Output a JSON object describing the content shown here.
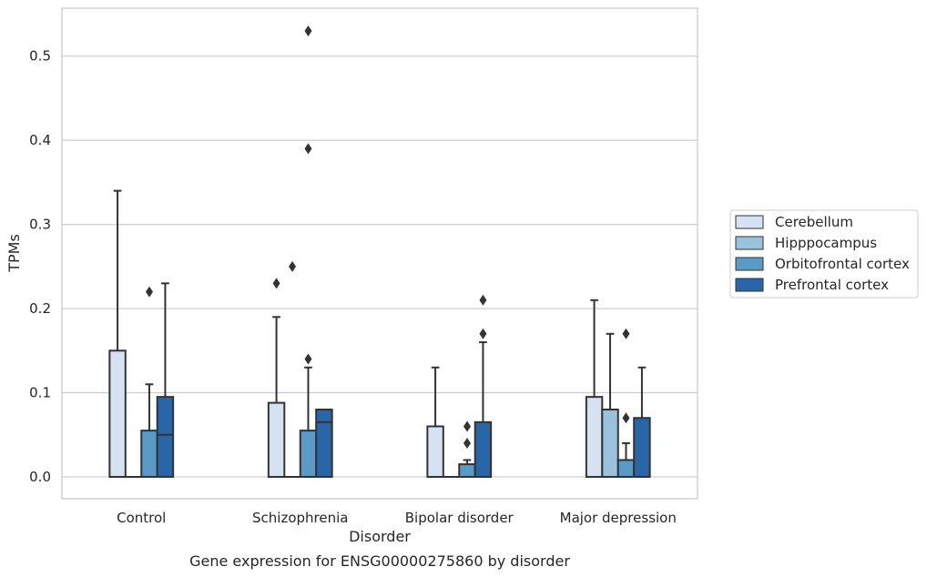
{
  "chart_data": {
    "type": "box",
    "title": "",
    "caption": "Gene expression for ENSG00000275860 by disorder",
    "xlabel": "Disorder",
    "ylabel": "TPMs",
    "ylim": [
      -0.026,
      0.557
    ],
    "yticks": [
      0.0,
      0.1,
      0.2,
      0.3,
      0.4,
      0.5
    ],
    "ytick_labels": [
      "0.0",
      "0.1",
      "0.2",
      "0.3",
      "0.4",
      "0.5"
    ],
    "grid": "horizontal",
    "legend_position": "right",
    "categories": [
      "Control",
      "Schizophrenia",
      "Bipolar disorder",
      "Major depression"
    ],
    "series": [
      {
        "name": "Cerebellum",
        "color": "#d4e2f1",
        "boxes": [
          {
            "whislo": 0.0,
            "q1": 0.0,
            "med": 0.0,
            "q3": 0.15,
            "whishi": 0.34,
            "fliers": []
          },
          {
            "whislo": 0.0,
            "q1": 0.0,
            "med": 0.0,
            "q3": 0.088,
            "whishi": 0.19,
            "fliers": [
              0.23
            ]
          },
          {
            "whislo": 0.0,
            "q1": 0.0,
            "med": 0.0,
            "q3": 0.06,
            "whishi": 0.13,
            "fliers": []
          },
          {
            "whislo": 0.0,
            "q1": 0.0,
            "med": 0.0,
            "q3": 0.095,
            "whishi": 0.21,
            "fliers": []
          }
        ]
      },
      {
        "name": "Hipppocampus",
        "color": "#9ac2dd",
        "boxes": [
          {
            "whislo": 0.0,
            "q1": 0.0,
            "med": 0.0,
            "q3": 0.0,
            "whishi": 0.0,
            "fliers": []
          },
          {
            "whislo": 0.0,
            "q1": 0.0,
            "med": 0.0,
            "q3": 0.0,
            "whishi": 0.0,
            "fliers": [
              0.25
            ]
          },
          {
            "whislo": 0.0,
            "q1": 0.0,
            "med": 0.0,
            "q3": 0.0,
            "whishi": 0.0,
            "fliers": []
          },
          {
            "whislo": 0.0,
            "q1": 0.0,
            "med": 0.0,
            "q3": 0.08,
            "whishi": 0.17,
            "fliers": []
          }
        ]
      },
      {
        "name": "Orbitofrontal cortex",
        "color": "#5a9ac6",
        "boxes": [
          {
            "whislo": 0.0,
            "q1": 0.0,
            "med": 0.0,
            "q3": 0.055,
            "whishi": 0.11,
            "fliers": [
              0.22
            ]
          },
          {
            "whislo": 0.0,
            "q1": 0.0,
            "med": 0.0,
            "q3": 0.055,
            "whishi": 0.13,
            "fliers": [
              0.14,
              0.39,
              0.53
            ]
          },
          {
            "whislo": 0.0,
            "q1": 0.0,
            "med": 0.0,
            "q3": 0.015,
            "whishi": 0.02,
            "fliers": [
              0.04,
              0.06
            ]
          },
          {
            "whislo": 0.0,
            "q1": 0.0,
            "med": 0.0,
            "q3": 0.02,
            "whishi": 0.04,
            "fliers": [
              0.07,
              0.17
            ]
          }
        ]
      },
      {
        "name": "Prefrontal cortex",
        "color": "#2866a8",
        "boxes": [
          {
            "whislo": 0.0,
            "q1": 0.0,
            "med": 0.05,
            "q3": 0.095,
            "whishi": 0.23,
            "fliers": []
          },
          {
            "whislo": 0.0,
            "q1": 0.0,
            "med": 0.065,
            "q3": 0.08,
            "whishi": 0.08,
            "fliers": []
          },
          {
            "whislo": 0.0,
            "q1": 0.0,
            "med": 0.0,
            "q3": 0.065,
            "whishi": 0.16,
            "fliers": [
              0.17,
              0.21
            ]
          },
          {
            "whislo": 0.0,
            "q1": 0.0,
            "med": 0.0,
            "q3": 0.07,
            "whishi": 0.13,
            "fliers": []
          }
        ]
      }
    ]
  }
}
